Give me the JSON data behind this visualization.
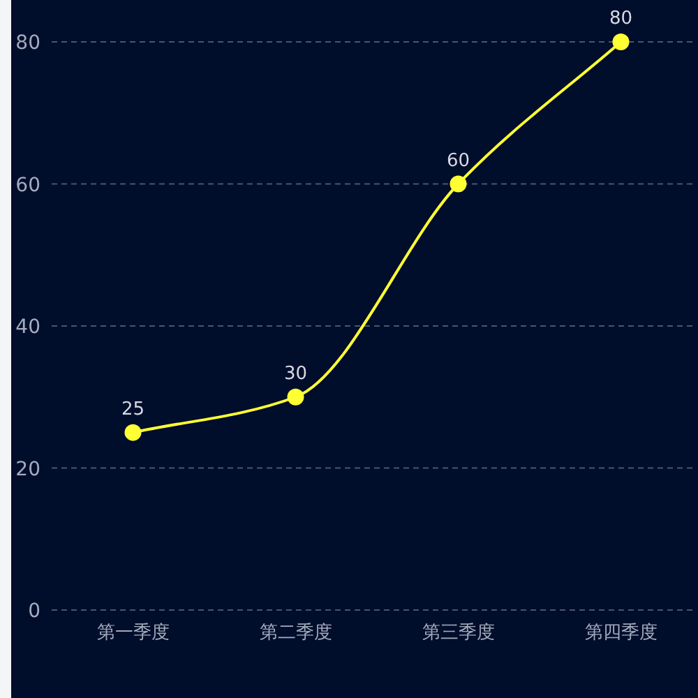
{
  "chart_data": {
    "type": "line",
    "categories": [
      "第一季度",
      "第二季度",
      "第三季度",
      "第四季度"
    ],
    "values": [
      25,
      30,
      60,
      80
    ],
    "color": "#ffff33",
    "ylim": [
      0,
      80
    ],
    "yticks": [
      0,
      20,
      40,
      60,
      80
    ],
    "grid": "y",
    "data_labels": true,
    "marker": "circle",
    "line_style": "solid"
  }
}
